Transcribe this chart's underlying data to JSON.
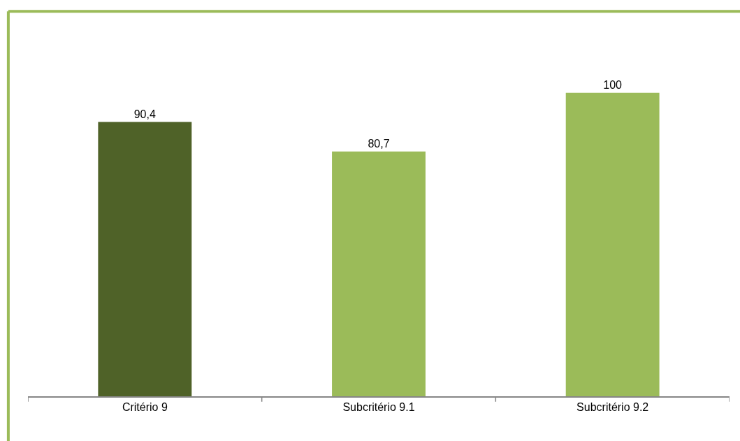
{
  "chart_data": {
    "type": "bar",
    "categories": [
      "Critério 9",
      "Subcritério 9.1",
      "Subcritério 9.2"
    ],
    "values": [
      90.4,
      80.7,
      100
    ],
    "value_labels": [
      "90,4",
      "80,7",
      "100"
    ],
    "colors": [
      "#4f6228",
      "#9bbb59",
      "#9bbb59"
    ],
    "tick_labels": "x",
    "legend": false
  }
}
